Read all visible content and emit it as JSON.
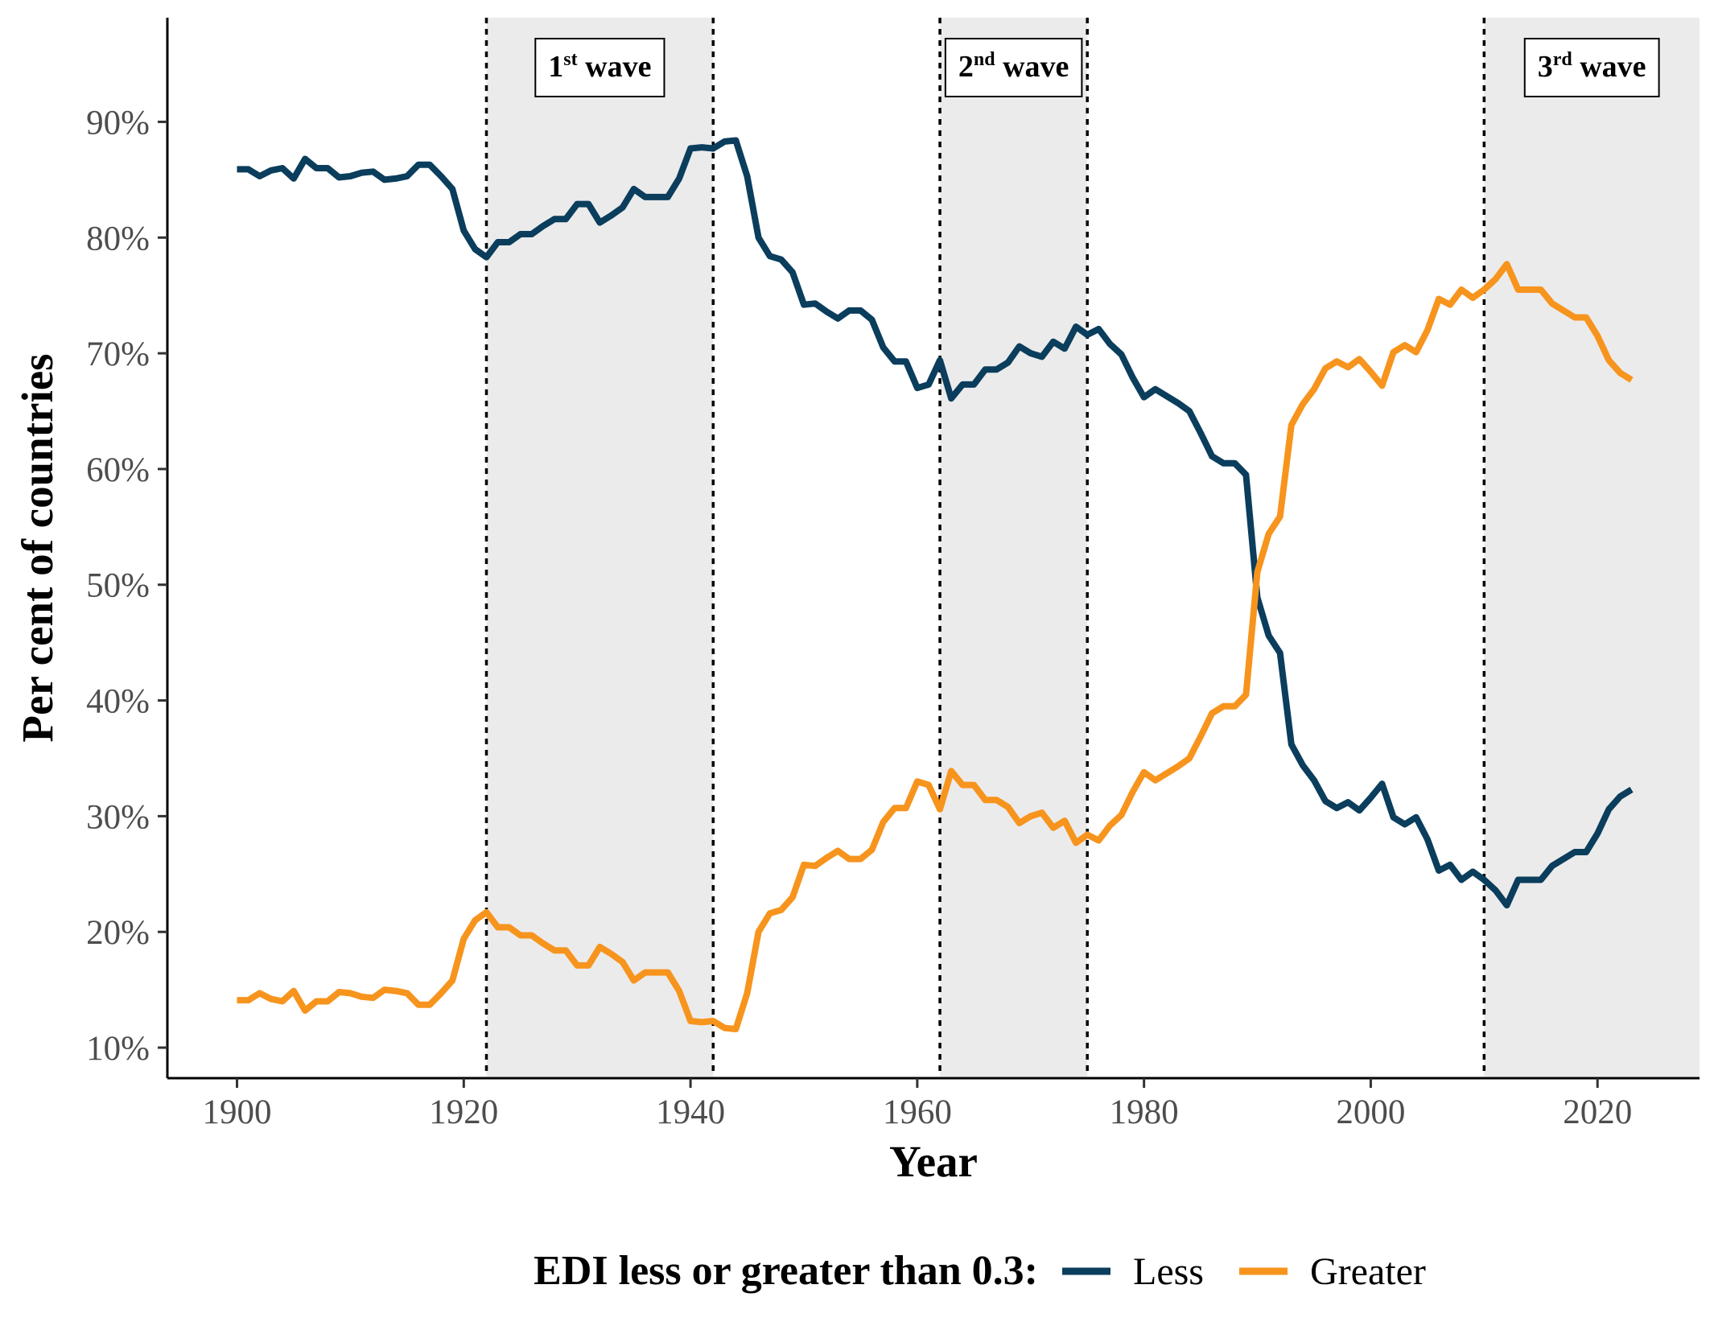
{
  "chart_data": {
    "type": "line",
    "xlabel": "Year",
    "ylabel": "Per cent of countries",
    "xlim": [
      1894,
      2029
    ],
    "ylim": [
      7.5,
      99
    ],
    "x_ticks": [
      1900,
      1920,
      1940,
      1960,
      1980,
      2000,
      2020
    ],
    "y_ticks": [
      10,
      20,
      30,
      40,
      50,
      60,
      70,
      80,
      90
    ],
    "y_tick_suffix": "%",
    "grid": false,
    "legend": {
      "title": "EDI less or greater than 0.3:",
      "position": "bottom"
    },
    "bands": [
      {
        "start": 1922,
        "end": 1942,
        "label": "1",
        "sup": "st",
        "suffix": " wave"
      },
      {
        "start": 1962,
        "end": 1975,
        "label": "2",
        "sup": "nd",
        "suffix": " wave"
      },
      {
        "start": 2010,
        "end": 2029,
        "label": "3",
        "sup": "rd",
        "suffix": " wave"
      }
    ],
    "x": [
      1900,
      1901,
      1902,
      1903,
      1904,
      1905,
      1906,
      1907,
      1908,
      1909,
      1910,
      1911,
      1912,
      1913,
      1914,
      1915,
      1916,
      1917,
      1918,
      1919,
      1920,
      1921,
      1922,
      1923,
      1924,
      1925,
      1926,
      1927,
      1928,
      1929,
      1930,
      1931,
      1932,
      1933,
      1934,
      1935,
      1936,
      1937,
      1938,
      1939,
      1940,
      1941,
      1942,
      1943,
      1944,
      1945,
      1946,
      1947,
      1948,
      1949,
      1950,
      1951,
      1952,
      1953,
      1954,
      1955,
      1956,
      1957,
      1958,
      1959,
      1960,
      1961,
      1962,
      1963,
      1964,
      1965,
      1966,
      1967,
      1968,
      1969,
      1970,
      1971,
      1972,
      1973,
      1974,
      1975,
      1976,
      1977,
      1978,
      1979,
      1980,
      1981,
      1982,
      1983,
      1984,
      1985,
      1986,
      1987,
      1988,
      1989,
      1990,
      1991,
      1992,
      1993,
      1994,
      1995,
      1996,
      1997,
      1998,
      1999,
      2000,
      2001,
      2002,
      2003,
      2004,
      2005,
      2006,
      2007,
      2008,
      2009,
      2010,
      2011,
      2012,
      2013,
      2014,
      2015,
      2016,
      2017,
      2018,
      2019,
      2020,
      2021,
      2022,
      2023
    ],
    "series": [
      {
        "name": "Less",
        "color": "#0b3d5c",
        "values": [
          85.9,
          85.9,
          85.3,
          85.8,
          86.0,
          85.1,
          86.8,
          86.0,
          86.0,
          85.2,
          85.3,
          85.6,
          85.7,
          85.0,
          85.1,
          85.3,
          86.3,
          86.3,
          85.3,
          84.2,
          80.6,
          79.0,
          78.3,
          79.6,
          79.6,
          80.3,
          80.3,
          81.0,
          81.6,
          81.6,
          82.9,
          82.9,
          81.3,
          81.9,
          82.6,
          84.2,
          83.5,
          83.5,
          83.5,
          85.1,
          87.7,
          87.8,
          87.7,
          88.3,
          88.4,
          85.3,
          80.0,
          78.4,
          78.1,
          77.0,
          74.2,
          74.3,
          73.6,
          73.0,
          73.7,
          73.7,
          72.9,
          70.5,
          69.3,
          69.3,
          67.0,
          67.3,
          69.4,
          66.1,
          67.3,
          67.3,
          68.6,
          68.6,
          69.2,
          70.6,
          70.0,
          69.7,
          71.0,
          70.4,
          72.3,
          71.6,
          72.1,
          70.8,
          69.9,
          67.9,
          66.2,
          66.9,
          66.3,
          65.7,
          65.0,
          63.1,
          61.1,
          60.5,
          60.5,
          59.5,
          48.9,
          45.6,
          44.1,
          36.2,
          34.4,
          33.1,
          31.3,
          30.7,
          31.2,
          30.5,
          31.6,
          32.8,
          29.9,
          29.3,
          29.9,
          28.0,
          25.3,
          25.8,
          24.5,
          25.2,
          24.5,
          23.6,
          22.3,
          24.5,
          24.5,
          24.5,
          25.7,
          26.3,
          26.9,
          26.9,
          28.5,
          30.6,
          31.7,
          32.3
        ]
      },
      {
        "name": "Greater",
        "color": "#f7941d",
        "values": [
          14.1,
          14.1,
          14.7,
          14.2,
          14.0,
          14.9,
          13.2,
          14.0,
          14.0,
          14.8,
          14.7,
          14.4,
          14.3,
          15.0,
          14.9,
          14.7,
          13.7,
          13.7,
          14.7,
          15.8,
          19.4,
          21.0,
          21.7,
          20.4,
          20.4,
          19.7,
          19.7,
          19.0,
          18.4,
          18.4,
          17.1,
          17.1,
          18.7,
          18.1,
          17.4,
          15.8,
          16.5,
          16.5,
          16.5,
          14.9,
          12.3,
          12.2,
          12.3,
          11.7,
          11.6,
          14.7,
          20.0,
          21.6,
          21.9,
          23.0,
          25.8,
          25.7,
          26.4,
          27.0,
          26.3,
          26.3,
          27.1,
          29.5,
          30.7,
          30.7,
          33.0,
          32.7,
          30.6,
          33.9,
          32.7,
          32.7,
          31.4,
          31.4,
          30.8,
          29.4,
          30.0,
          30.3,
          29.0,
          29.6,
          27.7,
          28.4,
          27.9,
          29.2,
          30.1,
          32.1,
          33.8,
          33.1,
          33.7,
          34.3,
          35.0,
          36.9,
          38.9,
          39.5,
          39.5,
          40.5,
          51.1,
          54.4,
          55.9,
          63.8,
          65.6,
          66.9,
          68.7,
          69.3,
          68.8,
          69.5,
          68.4,
          67.2,
          70.1,
          70.7,
          70.1,
          72.0,
          74.7,
          74.2,
          75.5,
          74.8,
          75.5,
          76.4,
          77.7,
          75.5,
          75.5,
          75.5,
          74.3,
          73.7,
          73.1,
          73.1,
          71.5,
          69.4,
          68.3,
          67.7
        ]
      }
    ]
  }
}
